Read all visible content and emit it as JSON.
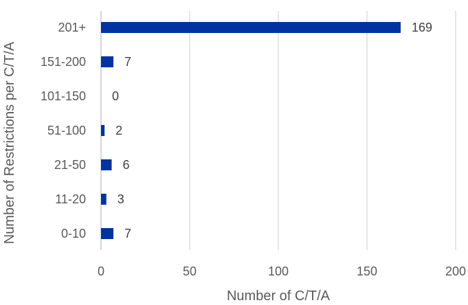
{
  "chart_data": {
    "type": "bar",
    "orientation": "horizontal",
    "categories": [
      "201+",
      "151-200",
      "101-150",
      "51-100",
      "21-50",
      "11-20",
      "0-10"
    ],
    "values": [
      169,
      7,
      0,
      2,
      6,
      3,
      7
    ],
    "title": "",
    "xlabel": "Number of C/T/A",
    "ylabel": "Number of Restrictions per C/T/A",
    "xlim": [
      0,
      200
    ],
    "xticks": [
      0,
      50,
      100,
      150,
      200
    ],
    "grid": "vertical",
    "legend": "none",
    "bar_color": "#0033a0",
    "data_labels": true
  }
}
